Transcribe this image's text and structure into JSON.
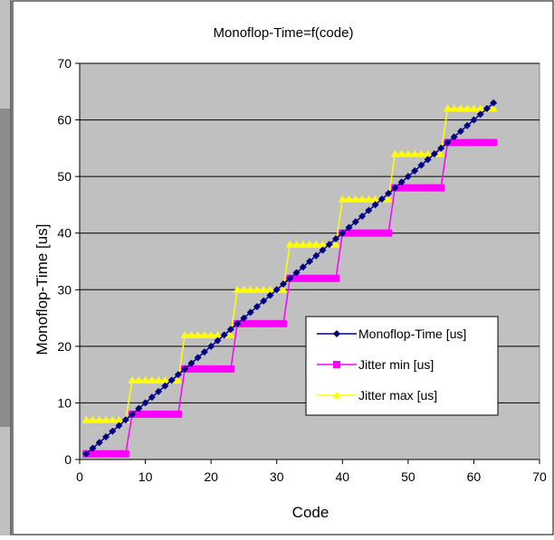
{
  "chart_data": {
    "type": "line",
    "title": "Monoflop-Time=f(code)",
    "xlabel": "Code",
    "ylabel": "Monoflop-Time  [us]",
    "xlim": [
      0,
      70
    ],
    "ylim": [
      0,
      70
    ],
    "xticks": [
      0,
      10,
      20,
      30,
      40,
      50,
      60,
      70
    ],
    "yticks": [
      0,
      10,
      20,
      30,
      40,
      50,
      60,
      70
    ],
    "grid": "horizontal",
    "legend_position": "right-middle",
    "x": [
      1,
      2,
      3,
      4,
      5,
      6,
      7,
      8,
      9,
      10,
      11,
      12,
      13,
      14,
      15,
      16,
      17,
      18,
      19,
      20,
      21,
      22,
      23,
      24,
      25,
      26,
      27,
      28,
      29,
      30,
      31,
      32,
      33,
      34,
      35,
      36,
      37,
      38,
      39,
      40,
      41,
      42,
      43,
      44,
      45,
      46,
      47,
      48,
      49,
      50,
      51,
      52,
      53,
      54,
      55,
      56,
      57,
      58,
      59,
      60,
      61,
      62,
      63
    ],
    "series": [
      {
        "name": "Monoflop-Time [us]",
        "color": "#000080",
        "marker": "diamond",
        "values": [
          1,
          2,
          3,
          4,
          5,
          6,
          7,
          8,
          9,
          10,
          11,
          12,
          13,
          14,
          15,
          16,
          17,
          18,
          19,
          20,
          21,
          22,
          23,
          24,
          25,
          26,
          27,
          28,
          29,
          30,
          31,
          32,
          33,
          34,
          35,
          36,
          37,
          38,
          39,
          40,
          41,
          42,
          43,
          44,
          45,
          46,
          47,
          48,
          49,
          50,
          51,
          52,
          53,
          54,
          55,
          56,
          57,
          58,
          59,
          60,
          61,
          62,
          63
        ]
      },
      {
        "name": "Jitter min [us]",
        "color": "#ff00ff",
        "marker": "square",
        "values": [
          1,
          1,
          1,
          1,
          1,
          1,
          1,
          8,
          8,
          8,
          8,
          8,
          8,
          8,
          8,
          16,
          16,
          16,
          16,
          16,
          16,
          16,
          16,
          24,
          24,
          24,
          24,
          24,
          24,
          24,
          24,
          32,
          32,
          32,
          32,
          32,
          32,
          32,
          32,
          40,
          40,
          40,
          40,
          40,
          40,
          40,
          40,
          48,
          48,
          48,
          48,
          48,
          48,
          48,
          48,
          56,
          56,
          56,
          56,
          56,
          56,
          56,
          56
        ]
      },
      {
        "name": "Jitter max [us]",
        "color": "#ffff00",
        "marker": "triangle",
        "values": [
          7,
          7,
          7,
          7,
          7,
          7,
          7,
          14,
          14,
          14,
          14,
          14,
          14,
          14,
          14,
          22,
          22,
          22,
          22,
          22,
          22,
          22,
          22,
          30,
          30,
          30,
          30,
          30,
          30,
          30,
          30,
          38,
          38,
          38,
          38,
          38,
          38,
          38,
          38,
          46,
          46,
          46,
          46,
          46,
          46,
          46,
          46,
          54,
          54,
          54,
          54,
          54,
          54,
          54,
          54,
          62,
          62,
          62,
          62,
          62,
          62,
          62,
          62
        ]
      }
    ],
    "colors": {
      "plot_background": "#c0c0c0",
      "gridline": "#000000",
      "legend_background": "#ffffff"
    }
  }
}
